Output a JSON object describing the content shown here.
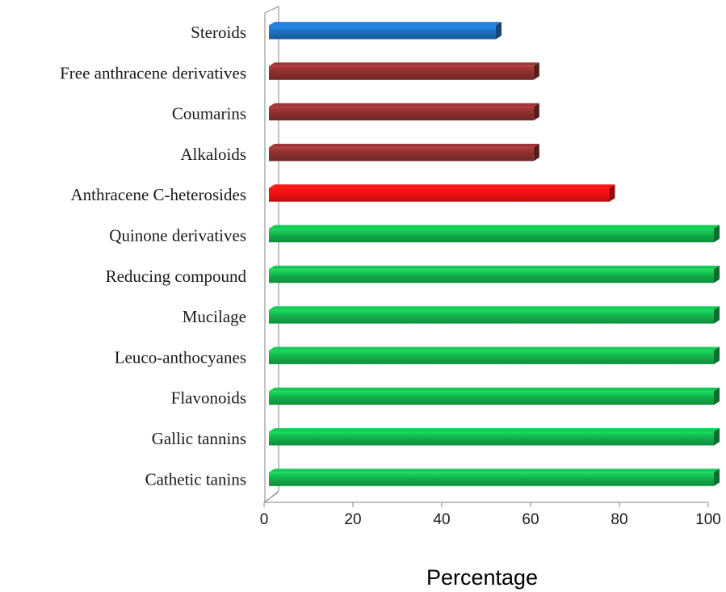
{
  "chart_data": {
    "type": "bar",
    "orientation": "horizontal",
    "title": "",
    "xlabel": "Percentage",
    "ylabel": "",
    "xlim": [
      0,
      100
    ],
    "x_ticks": [
      0,
      20,
      40,
      60,
      80,
      100
    ],
    "grid": false,
    "legend": "none",
    "categories": [
      "Steroids",
      "Free anthracene derivatives",
      "Coumarins",
      "Alkaloids",
      "Anthracene C-heterosides",
      "Quinone derivatives",
      "Reducing compound",
      "Mucilage",
      "Leuco-anthocyanes",
      "Flavonoids",
      "Gallic  tannins",
      "Cathetic tanins"
    ],
    "values": [
      51,
      59.5,
      59.5,
      59.5,
      76.5,
      100,
      100,
      100,
      100,
      100,
      100,
      100
    ],
    "colors": [
      "#1f6fbf",
      "#8c2f2f",
      "#8c2f2f",
      "#8c2f2f",
      "#ee1111",
      "#13b04b",
      "#13b04b",
      "#13b04b",
      "#13b04b",
      "#13b04b",
      "#13b04b",
      "#13b04b"
    ]
  }
}
